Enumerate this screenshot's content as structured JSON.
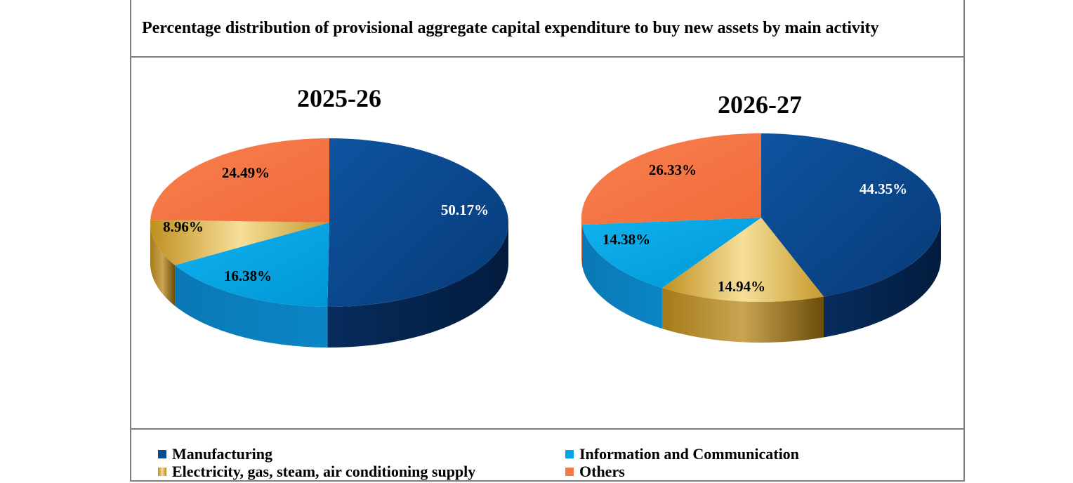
{
  "chart_title": "Percentage distribution of provisional aggregate capital expenditure to buy new assets by main activity",
  "legend": [
    {
      "label": "Manufacturing",
      "color": "#0b4a8f"
    },
    {
      "label": "Information and Communication",
      "color": "#00a6e6"
    },
    {
      "label": "Electricity, gas, steam, air conditioning supply",
      "color": "#d4af37"
    },
    {
      "label": "Others",
      "color": "#f47a4a"
    }
  ],
  "chart_data": [
    {
      "type": "pie",
      "title": "2025-26",
      "categories": [
        "Manufacturing",
        "Information and Communication",
        "Electricity, gas, steam, air conditioning supply",
        "Others"
      ],
      "values": [
        50.17,
        16.38,
        8.96,
        24.49
      ],
      "labels": [
        "50.17%",
        "16.38%",
        "8.96%",
        "24.49%"
      ],
      "style": "3d"
    },
    {
      "type": "pie",
      "title": "2026-27",
      "categories": [
        "Manufacturing",
        "Electricity, gas, steam, air conditioning supply",
        "Information and Communication",
        "Others"
      ],
      "values": [
        44.35,
        14.94,
        14.38,
        26.33
      ],
      "labels": [
        "44.35%",
        "14.94%",
        "14.38%",
        "26.33%"
      ],
      "style": "3d"
    }
  ]
}
